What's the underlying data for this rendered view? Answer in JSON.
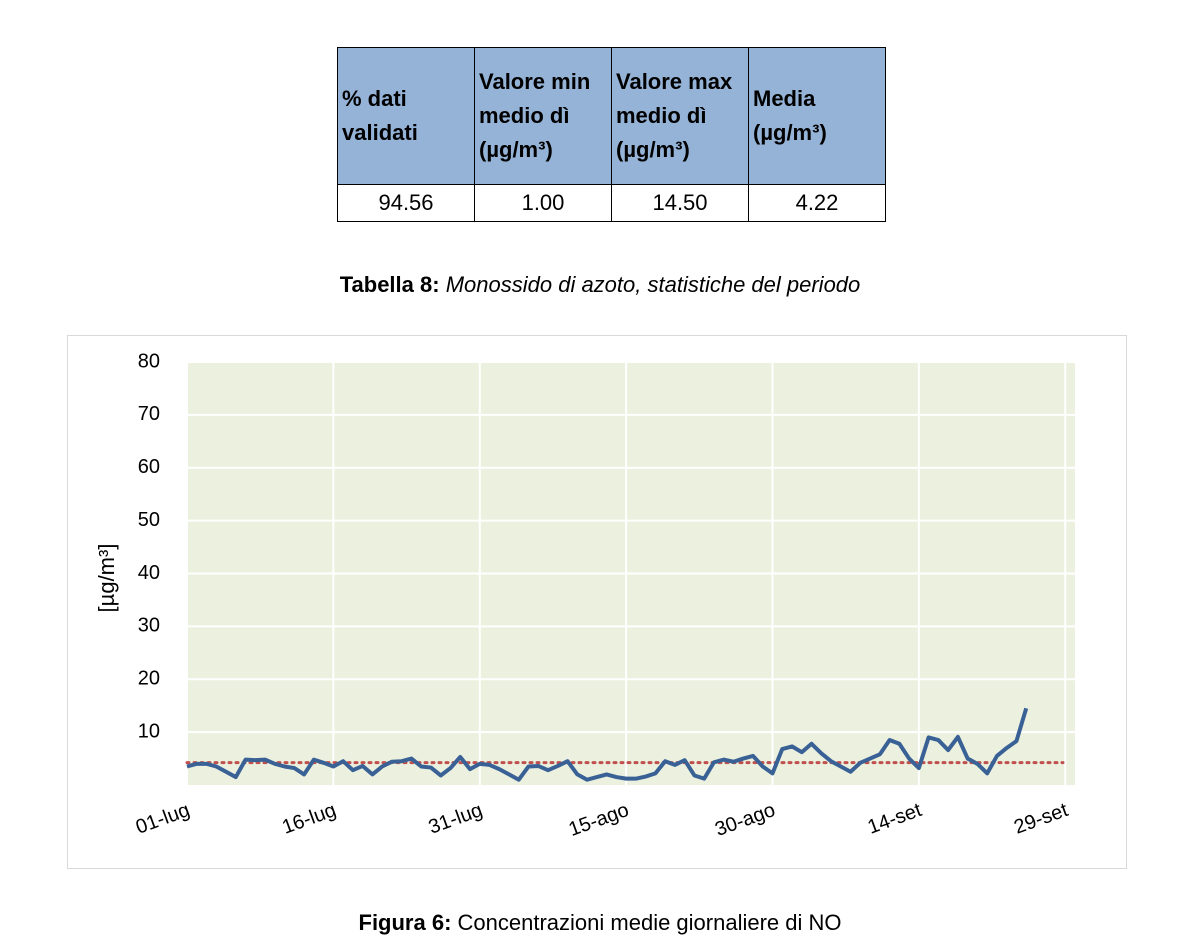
{
  "table": {
    "header": [
      "% dati validati",
      "Valore min medio dì (µg/m³)",
      "Valore max medio dì (µg/m³)",
      "Media (µg/m³)"
    ],
    "rows": [
      [
        "94.56",
        "1.00",
        "14.50",
        "4.22"
      ]
    ]
  },
  "table_caption": {
    "label": "Tabella 8:",
    "text": "Monossido di azoto, statistiche del periodo"
  },
  "chart_data": {
    "type": "line",
    "ylabel": "[µg/m³]",
    "x": [
      0,
      1,
      2,
      3,
      4,
      5,
      6,
      7,
      8,
      9,
      10,
      11,
      12,
      13,
      14,
      15,
      16,
      17,
      18,
      19,
      20,
      21,
      22,
      23,
      24,
      25,
      26,
      27,
      28,
      29,
      30,
      31,
      32,
      33,
      34,
      35,
      36,
      37,
      38,
      39,
      40,
      41,
      42,
      43,
      44,
      45,
      46,
      47,
      48,
      49,
      50,
      51,
      52,
      53,
      54,
      55,
      56,
      57,
      58,
      59,
      60,
      61,
      62,
      63,
      64,
      65,
      66,
      67,
      68,
      69,
      70,
      71,
      72,
      73,
      74,
      75,
      76,
      77,
      78,
      79,
      80,
      81,
      82,
      83,
      84,
      85,
      86
    ],
    "series": [
      {
        "color": "#3a6196",
        "values": [
          3.5,
          4,
          4,
          3.5,
          2.5,
          1.5,
          4.8,
          4.7,
          4.8,
          4,
          3.5,
          3.2,
          2,
          4.8,
          4.2,
          3.5,
          4.5,
          2.8,
          3.6,
          2,
          3.5,
          4.4,
          4.5,
          5,
          3.5,
          3.3,
          1.8,
          3.2,
          5.3,
          3,
          4,
          3.8,
          3,
          2,
          1,
          3.5,
          3.6,
          2.8,
          3.6,
          4.5,
          2,
          1,
          1.5,
          2,
          1.5,
          1.2,
          1.2,
          1.6,
          2.2,
          4.5,
          3.8,
          4.7,
          1.8,
          1.2,
          4.3,
          4.8,
          4.4,
          5,
          5.5,
          3.5,
          2.2,
          6.8,
          7.3,
          6.2,
          7.8,
          6,
          4.5,
          3.5,
          2.5,
          4.2,
          5,
          5.8,
          8.5,
          7.8,
          5,
          3.2,
          9,
          8.5,
          6.6,
          9.1,
          5,
          4,
          2.2,
          5.5,
          7,
          8.3,
          14.5
        ]
      }
    ],
    "mean_line": {
      "value": 4.22,
      "color": "#c0504d"
    },
    "xlim": [
      0,
      91
    ],
    "xticks": [
      {
        "value": 0,
        "label": "01-lug"
      },
      {
        "value": 15,
        "label": "16-lug"
      },
      {
        "value": 30,
        "label": "31-lug"
      },
      {
        "value": 45,
        "label": "15-ago"
      },
      {
        "value": 60,
        "label": "30-ago"
      },
      {
        "value": 75,
        "label": "14-set"
      },
      {
        "value": 90,
        "label": "29-set"
      }
    ],
    "ylim": [
      0,
      80
    ],
    "yticks": [
      10,
      20,
      30,
      40,
      50,
      60,
      70,
      80
    ],
    "grid": true
  },
  "figure_caption": {
    "label": "Figura 6:",
    "text": "Concentrazioni medie giornaliere di NO"
  }
}
